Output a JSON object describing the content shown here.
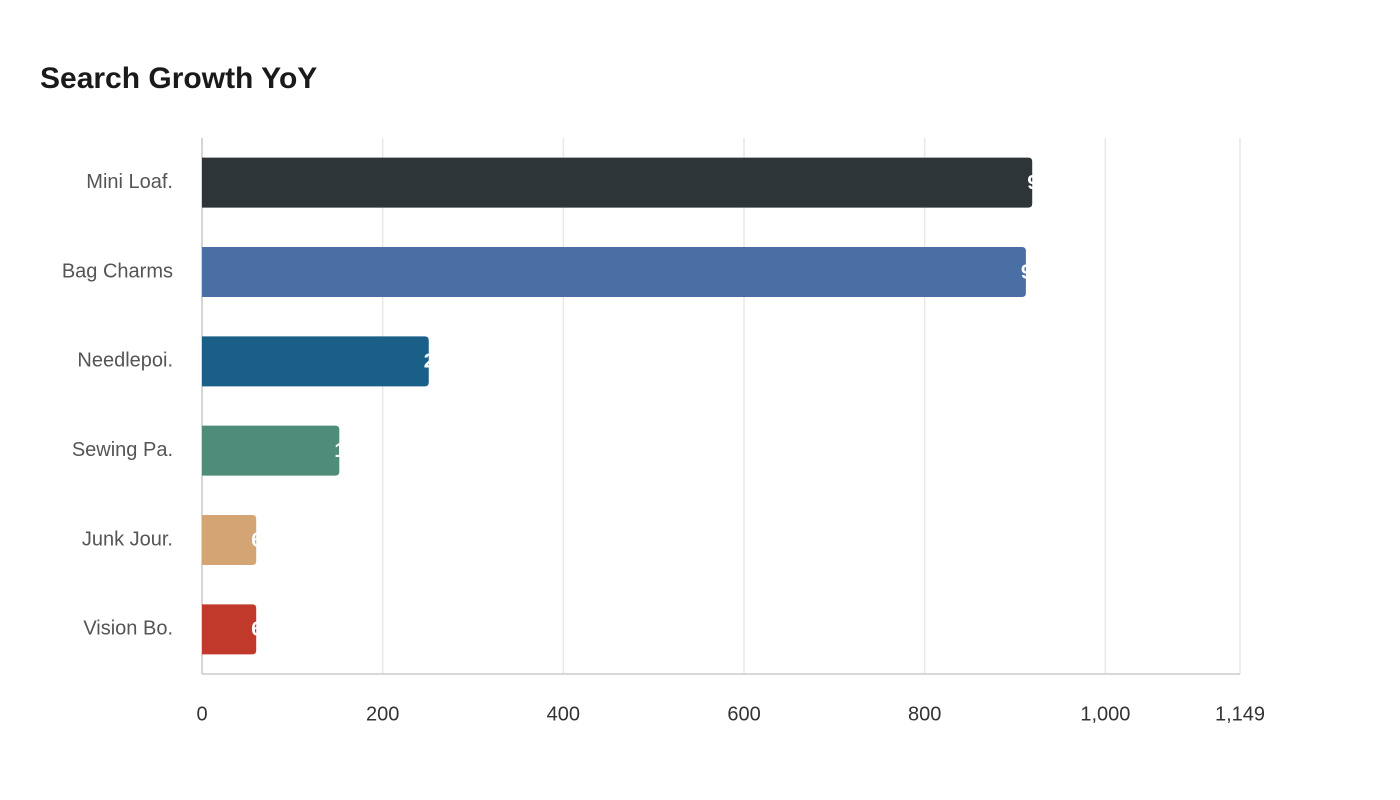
{
  "chart_data": {
    "type": "bar",
    "orientation": "horizontal",
    "title": "Search Growth YoY",
    "categories": [
      "Mini Loaf.",
      "Bag Charms",
      "Needlepoi.",
      "Sewing Pa.",
      "Junk Jour.",
      "Vision Bo."
    ],
    "values": [
      919,
      912,
      251,
      152,
      60,
      60
    ],
    "colors": [
      "#2e3538",
      "#4a6fa5",
      "#1a5f87",
      "#4f8d7a",
      "#d4a574",
      "#c0392b"
    ],
    "xlim": [
      0,
      1149
    ],
    "xticks": [
      0,
      200,
      400,
      600,
      800,
      {
        "value": 1000,
        "label": "1,000"
      },
      {
        "value": 1149,
        "label": "1,149"
      }
    ],
    "grid": true
  }
}
